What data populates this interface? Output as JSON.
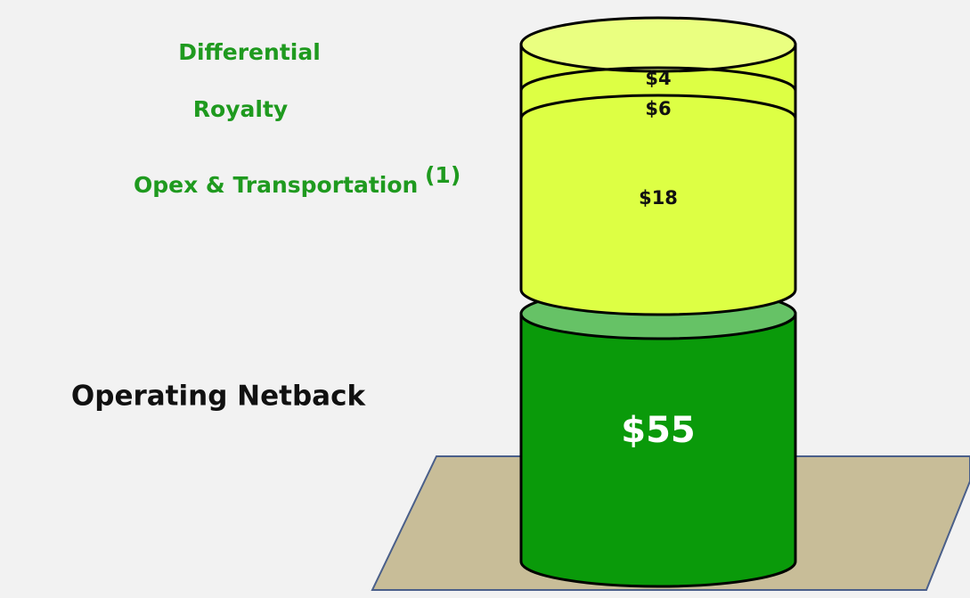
{
  "segments": [
    {
      "label": "Differential",
      "value": "$4"
    },
    {
      "label": "Royalty",
      "value": "$6"
    },
    {
      "label": "Opex & Transportation",
      "note": "(1)",
      "value": "$18"
    },
    {
      "label": "Operating Netback",
      "value": "$55"
    }
  ]
}
